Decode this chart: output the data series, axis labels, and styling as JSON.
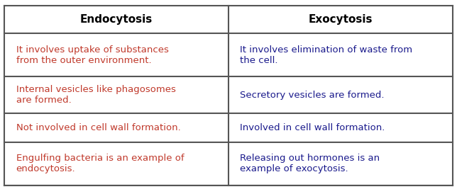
{
  "header": [
    "Endocytosis",
    "Exocytosis"
  ],
  "rows": [
    [
      "It involves uptake of substances\nfrom the outer environment.",
      "It involves elimination of waste from\nthe cell."
    ],
    [
      "Internal vesicles like phagosomes\nare formed.",
      "Secretory vesicles are formed."
    ],
    [
      "Not involved in cell wall formation.",
      "Involved in cell wall formation."
    ],
    [
      "Engulfing bacteria is an example of\nendocytosis.",
      "Releasing out hormones is an\nexample of exocytosis."
    ]
  ],
  "header_text_color": "#000000",
  "left_row_text_color": "#c0392b",
  "right_row_text_color": "#1a1a8c",
  "background_color": "#ffffff",
  "border_color": "#555555",
  "header_fontsize": 11,
  "row_fontsize": 9.5,
  "fig_width": 6.44,
  "fig_height": 2.67
}
